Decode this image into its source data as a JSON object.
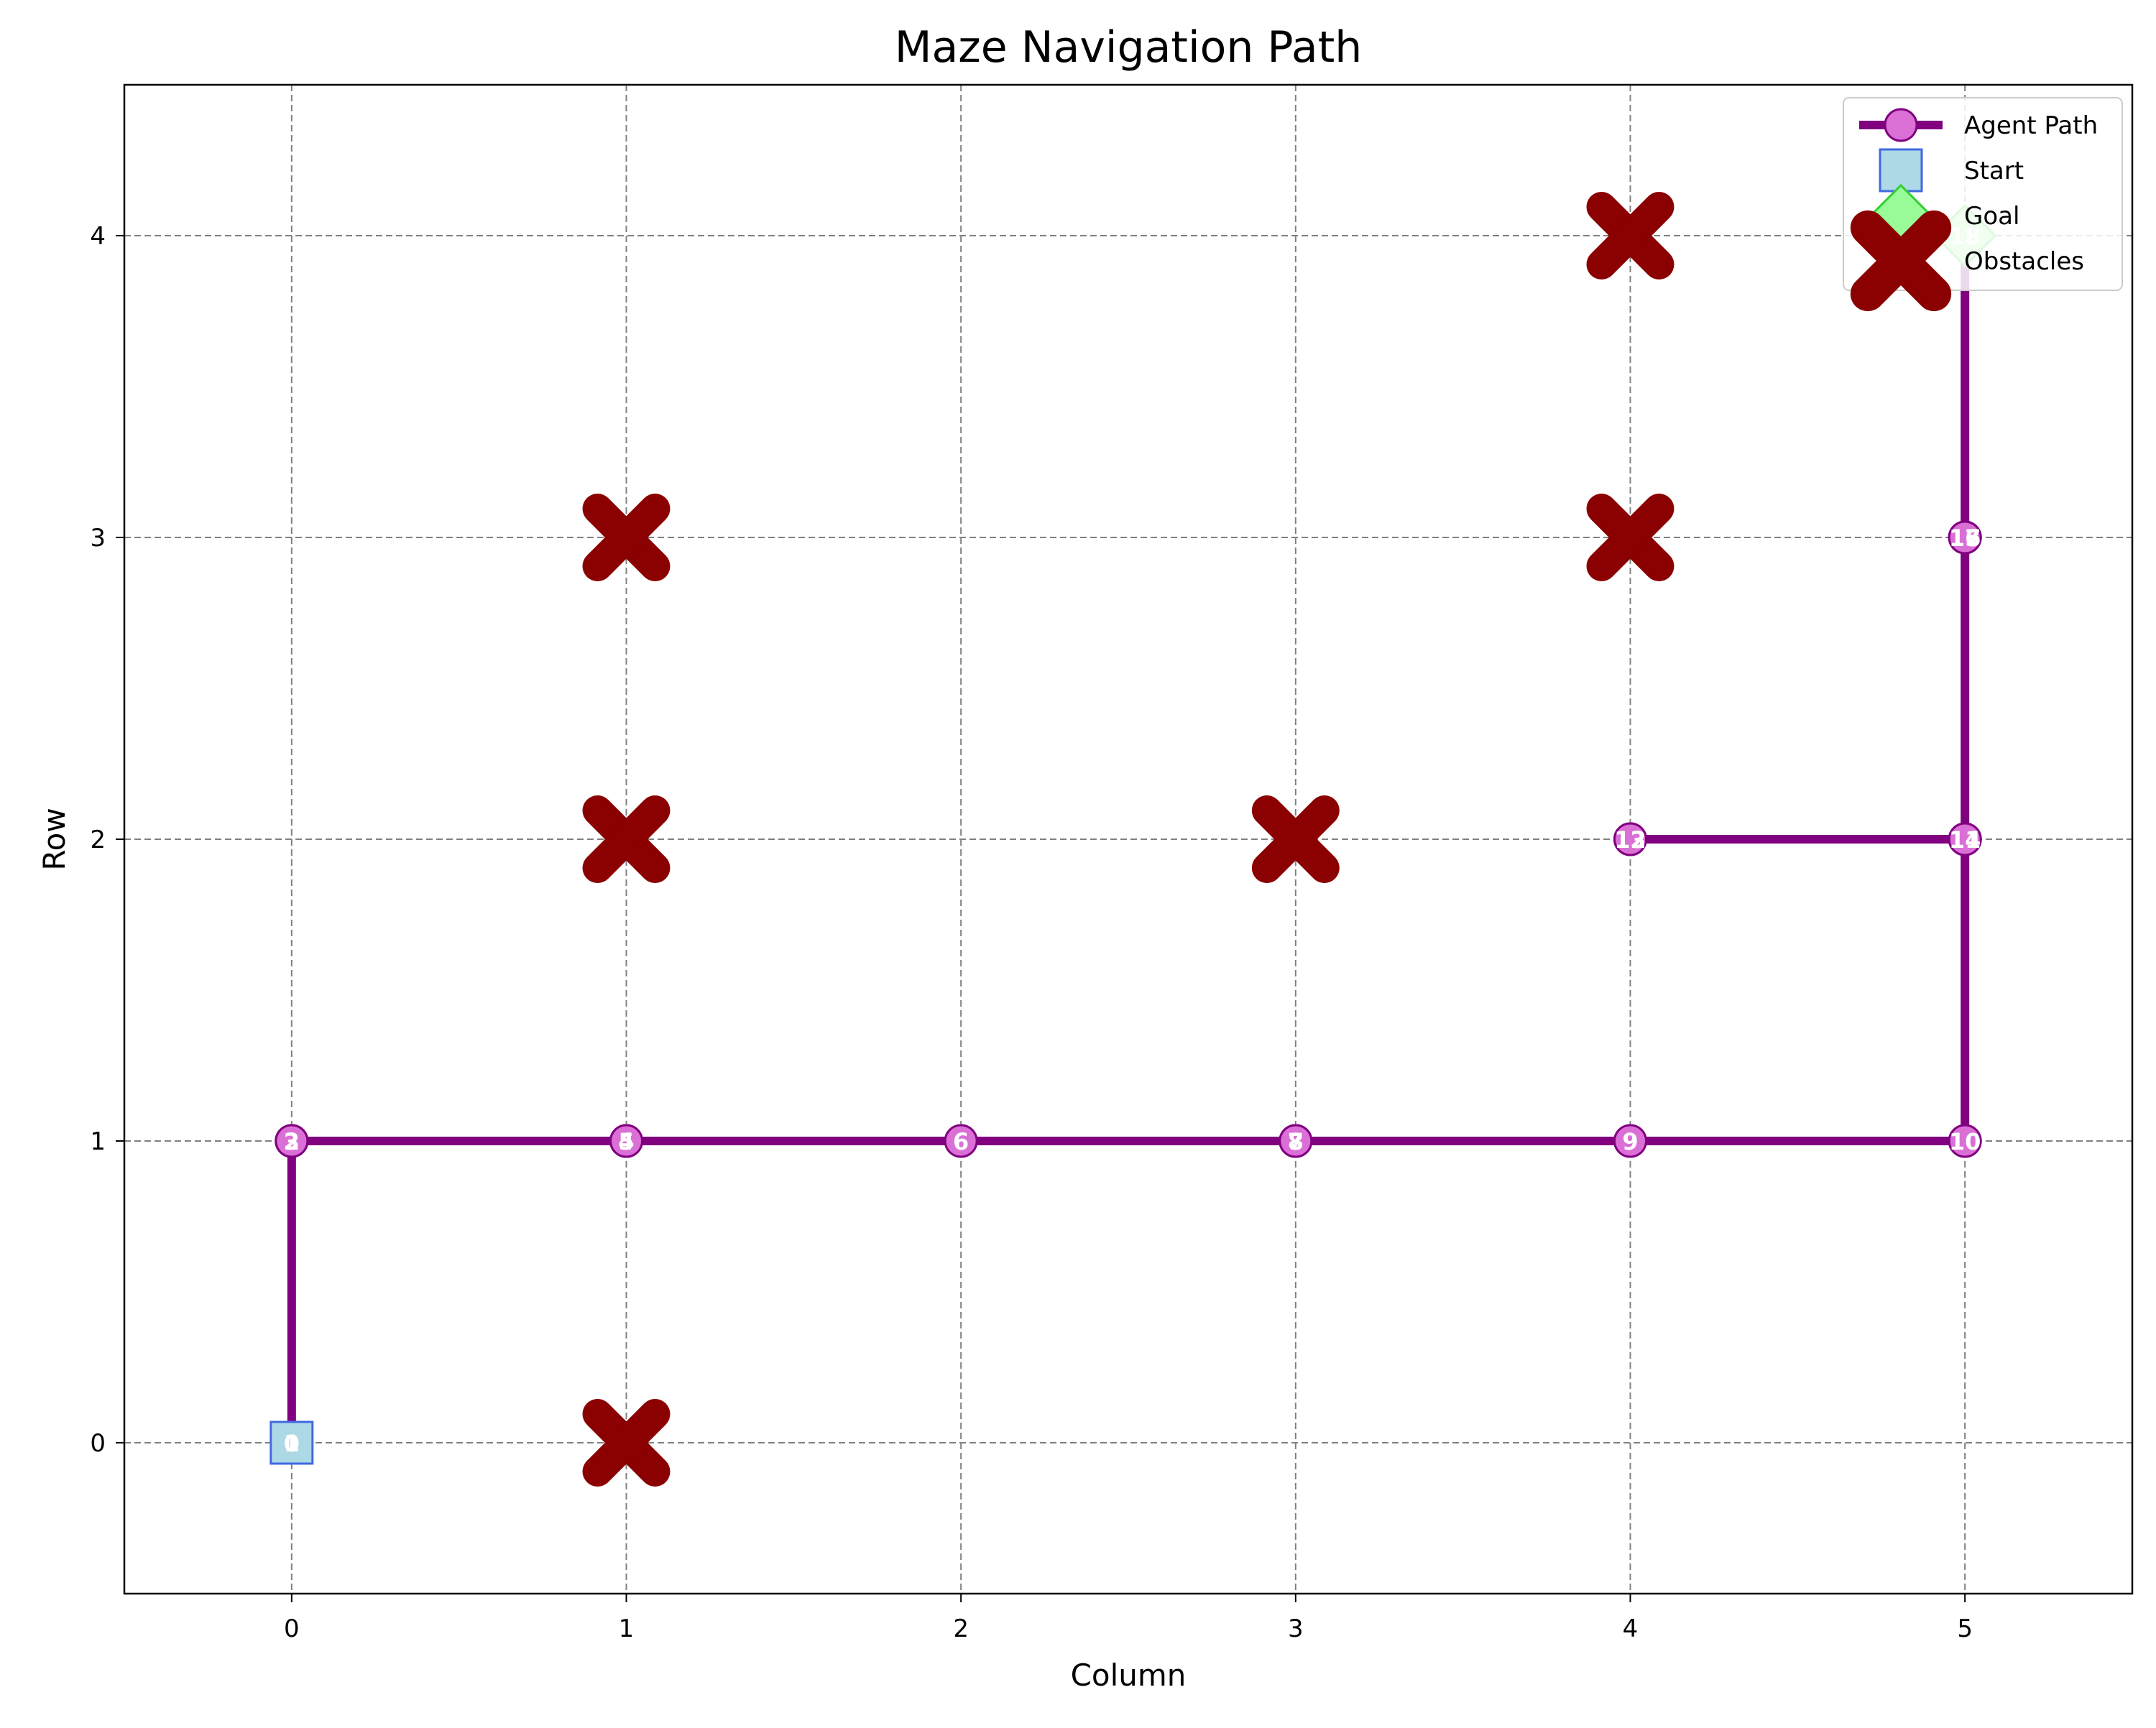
{
  "chart_data": {
    "type": "line",
    "title": "Maze Navigation Path",
    "xlabel": "Column",
    "ylabel": "Row",
    "xlim": [
      -0.5,
      5.5
    ],
    "ylim": [
      4.5,
      -0.5
    ],
    "y_inverted": true,
    "xticks": [
      0,
      1,
      2,
      3,
      4,
      5
    ],
    "yticks": [
      0,
      1,
      2,
      3,
      4
    ],
    "grid": true,
    "legend_position": "top-right",
    "series": [
      {
        "name": "Agent Path",
        "color": "#800080",
        "marker_color": "#da70d6",
        "points": [
          {
            "step": 0,
            "col": 0,
            "row": 0
          },
          {
            "step": 1,
            "col": 0,
            "row": 0
          },
          {
            "step": 2,
            "col": 0,
            "row": 1
          },
          {
            "step": 3,
            "col": 0,
            "row": 1
          },
          {
            "step": 4,
            "col": 1,
            "row": 1
          },
          {
            "step": 5,
            "col": 1,
            "row": 1
          },
          {
            "step": 6,
            "col": 2,
            "row": 1
          },
          {
            "step": 7,
            "col": 3,
            "row": 1
          },
          {
            "step": 8,
            "col": 3,
            "row": 1
          },
          {
            "step": 9,
            "col": 4,
            "row": 1
          },
          {
            "step": 10,
            "col": 5,
            "row": 1
          },
          {
            "step": 11,
            "col": 5,
            "row": 2
          },
          {
            "step": 12,
            "col": 4,
            "row": 2
          },
          {
            "step": 13,
            "col": 4,
            "row": 2
          },
          {
            "step": 14,
            "col": 5,
            "row": 2
          },
          {
            "step": 15,
            "col": 5,
            "row": 3
          },
          {
            "step": 16,
            "col": 5,
            "row": 3
          },
          {
            "step": 17,
            "col": 5,
            "row": 3
          },
          {
            "step": 18,
            "col": 5,
            "row": 4
          }
        ]
      },
      {
        "name": "Start",
        "color": "#add8e6",
        "edge_color": "#4169e1",
        "points": [
          {
            "col": 0,
            "row": 0
          }
        ]
      },
      {
        "name": "Goal",
        "color": "#98fb98",
        "edge_color": "#32cd32",
        "points": [
          {
            "col": 5,
            "row": 4
          }
        ]
      },
      {
        "name": "Obstacles",
        "color": "#8b0000",
        "points": [
          {
            "col": 1,
            "row": 0
          },
          {
            "col": 1,
            "row": 2
          },
          {
            "col": 3,
            "row": 2
          },
          {
            "col": 1,
            "row": 3
          },
          {
            "col": 4,
            "row": 3
          },
          {
            "col": 4,
            "row": 4
          }
        ]
      }
    ]
  }
}
